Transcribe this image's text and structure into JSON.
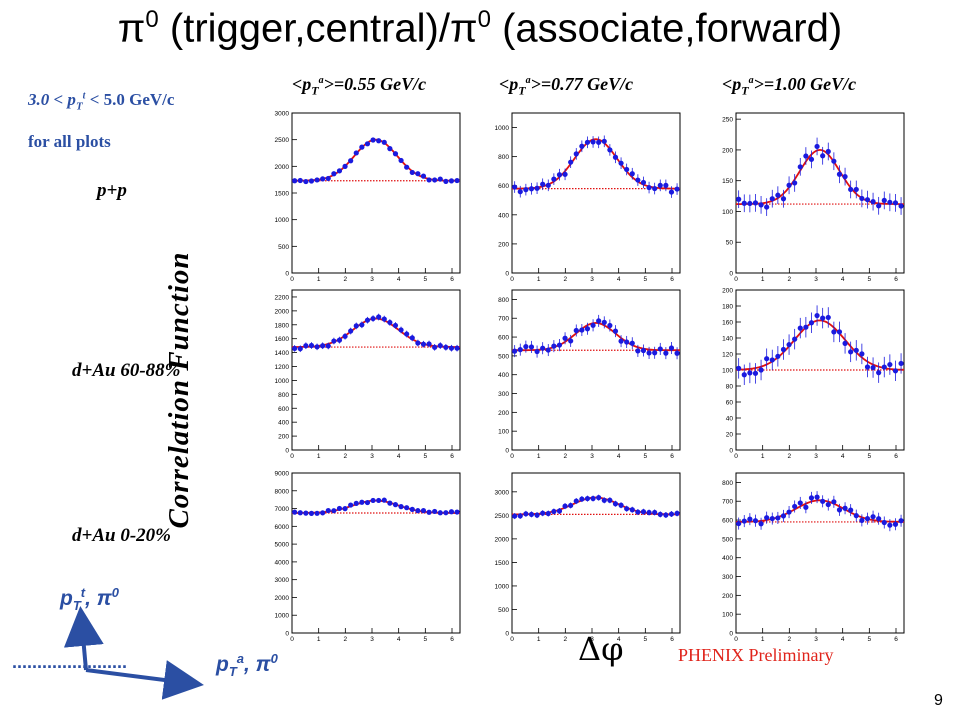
{
  "title": {
    "pi": "π",
    "sup1": "0",
    "mid": " (trigger,central)/",
    "sup2": "0",
    "end": " (associate,forward)"
  },
  "notes": {
    "pt_range": "3.0 < p",
    "pt_sub": "T",
    "pt_sup": "t",
    "pt_tail": " < 5.0 GeV/c",
    "all_plots": "for all plots"
  },
  "row_labels": [
    "p+p",
    "d+Au 60-88%",
    "d+Au 0-20%"
  ],
  "column_headers": [
    {
      "pre": "<p",
      "sub": "T",
      "sup": "a",
      "post": ">=0.55 GeV/c"
    },
    {
      "pre": "<p",
      "sub": "T",
      "sup": "a",
      "post": ">=0.77 GeV/c"
    },
    {
      "pre": "<p",
      "sub": "T",
      "sup": "a",
      "post": ">=1.00 GeV/c"
    }
  ],
  "y_axis_label": "Correlation Function",
  "x_axis_label": "Δφ",
  "watermark": "PHENIX Preliminary",
  "page_number": "9",
  "diagram": {
    "trigger_label": {
      "p": "p",
      "sub": "T",
      "sup": "t",
      "tail": ", π",
      "sup2": "0"
    },
    "assoc_label": {
      "p": "p",
      "sub": "T",
      "sup": "a",
      "tail": ", π",
      "sup2": "0"
    },
    "dots": "......................."
  },
  "colors": {
    "points": "#1a1adf",
    "fit": "#e01010",
    "baseline": "#e01010",
    "text_blue": "#2b4fa3",
    "watermark": "#e0241b"
  },
  "chart_data": [
    {
      "type": "scatter",
      "row": 0,
      "col": 0,
      "xlim": [
        0,
        6.3
      ],
      "ylim": [
        0,
        3000
      ],
      "yticks": [
        0,
        500,
        1000,
        1500,
        2000,
        2500,
        3000
      ],
      "xticks": [
        0,
        1,
        2,
        3,
        4,
        5,
        6
      ],
      "baseline": 1730,
      "peak": 2500,
      "sigma": 0.8,
      "noise": 25
    },
    {
      "type": "scatter",
      "row": 0,
      "col": 1,
      "xlim": [
        0,
        6.3
      ],
      "ylim": [
        0,
        1100
      ],
      "yticks": [
        0,
        200,
        400,
        600,
        800,
        1000
      ],
      "xticks": [
        0,
        1,
        2,
        3,
        4,
        5,
        6
      ],
      "baseline": 580,
      "peak": 920,
      "sigma": 0.8,
      "noise": 25
    },
    {
      "type": "scatter",
      "row": 0,
      "col": 2,
      "xlim": [
        0,
        6.3
      ],
      "ylim": [
        0,
        260
      ],
      "yticks": [
        0,
        50,
        100,
        150,
        200,
        250
      ],
      "xticks": [
        0,
        1,
        2,
        3,
        4,
        5,
        6
      ],
      "baseline": 112,
      "peak": 200,
      "sigma": 0.75,
      "noise": 9
    },
    {
      "type": "scatter",
      "row": 1,
      "col": 0,
      "xlim": [
        0,
        6.3
      ],
      "ylim": [
        0,
        2300
      ],
      "yticks": [
        0,
        200,
        400,
        600,
        800,
        1000,
        1200,
        1400,
        1600,
        1800,
        2000,
        2200
      ],
      "xticks": [
        0,
        1,
        2,
        3,
        4,
        5,
        6
      ],
      "baseline": 1480,
      "peak": 1890,
      "sigma": 0.85,
      "noise": 30
    },
    {
      "type": "scatter",
      "row": 1,
      "col": 1,
      "xlim": [
        0,
        6.3
      ],
      "ylim": [
        0,
        850
      ],
      "yticks": [
        0,
        100,
        200,
        300,
        400,
        500,
        600,
        700,
        800
      ],
      "xticks": [
        0,
        1,
        2,
        3,
        4,
        5,
        6
      ],
      "baseline": 530,
      "peak": 675,
      "sigma": 0.75,
      "noise": 20
    },
    {
      "type": "scatter",
      "row": 1,
      "col": 2,
      "xlim": [
        0,
        6.3
      ],
      "ylim": [
        0,
        200
      ],
      "yticks": [
        0,
        20,
        40,
        60,
        80,
        100,
        120,
        140,
        160,
        180,
        200
      ],
      "xticks": [
        0,
        1,
        2,
        3,
        4,
        5,
        6
      ],
      "baseline": 100,
      "peak": 162,
      "sigma": 0.95,
      "noise": 8
    },
    {
      "type": "scatter",
      "row": 2,
      "col": 0,
      "xlim": [
        0,
        6.3
      ],
      "ylim": [
        0,
        9000
      ],
      "yticks": [
        0,
        1000,
        2000,
        3000,
        4000,
        5000,
        6000,
        7000,
        8000,
        9000
      ],
      "xticks": [
        0,
        1,
        2,
        3,
        4,
        5,
        6
      ],
      "baseline": 6750,
      "peak": 7450,
      "sigma": 0.85,
      "noise": 70
    },
    {
      "type": "scatter",
      "row": 2,
      "col": 1,
      "xlim": [
        0,
        6.3
      ],
      "ylim": [
        0,
        3400
      ],
      "yticks": [
        0,
        500,
        1000,
        1500,
        2000,
        2500,
        3000
      ],
      "xticks": [
        0,
        1,
        2,
        3,
        4,
        5,
        6
      ],
      "baseline": 2520,
      "peak": 2880,
      "sigma": 0.85,
      "noise": 40
    },
    {
      "type": "scatter",
      "row": 2,
      "col": 2,
      "xlim": [
        0,
        6.3
      ],
      "ylim": [
        0,
        850
      ],
      "yticks": [
        0,
        100,
        200,
        300,
        400,
        500,
        600,
        700,
        800
      ],
      "xticks": [
        0,
        1,
        2,
        3,
        4,
        5,
        6
      ],
      "baseline": 590,
      "peak": 705,
      "sigma": 0.9,
      "noise": 20
    }
  ]
}
